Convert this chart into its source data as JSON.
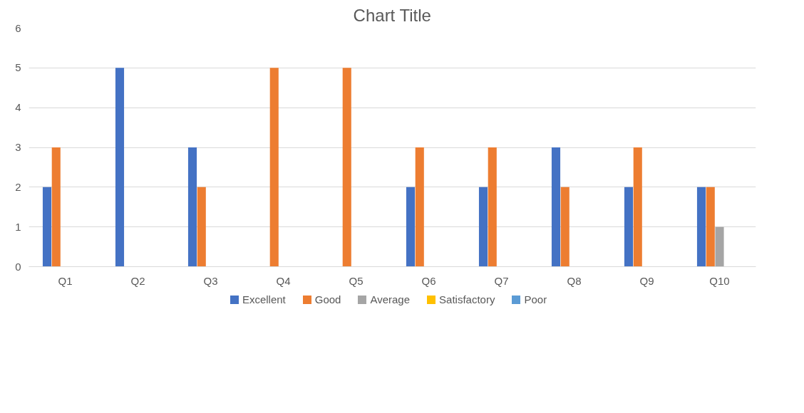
{
  "chart_data": {
    "type": "bar",
    "title": "Chart Title",
    "categories": [
      "Q1",
      "Q2",
      "Q3",
      "Q4",
      "Q5",
      "Q6",
      "Q7",
      "Q8",
      "Q9",
      "Q10"
    ],
    "series": [
      {
        "name": "Excellent",
        "color": "#4472c4",
        "values": [
          2,
          5,
          3,
          0,
          0,
          2,
          2,
          3,
          2,
          2
        ]
      },
      {
        "name": "Good",
        "color": "#ed7d31",
        "values": [
          3,
          0,
          2,
          5,
          5,
          3,
          3,
          2,
          3,
          2
        ]
      },
      {
        "name": "Average",
        "color": "#a5a5a5",
        "values": [
          0,
          0,
          0,
          0,
          0,
          0,
          0,
          0,
          0,
          1
        ]
      },
      {
        "name": "Satisfactory",
        "color": "#ffc000",
        "values": [
          0,
          0,
          0,
          0,
          0,
          0,
          0,
          0,
          0,
          0
        ]
      },
      {
        "name": "Poor",
        "color": "#5b9bd5",
        "values": [
          0,
          0,
          0,
          0,
          0,
          0,
          0,
          0,
          0,
          0
        ]
      }
    ],
    "ylim": [
      0,
      6
    ],
    "yticks": [
      0,
      1,
      2,
      3,
      4,
      5,
      6
    ],
    "grid": "y",
    "legend": "bottom"
  }
}
